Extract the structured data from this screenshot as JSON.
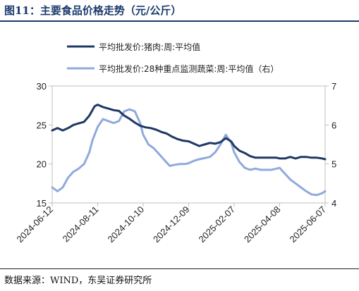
{
  "figure": {
    "title": "图11：主要食品价格走势（元/公斤）",
    "source": "数据来源：WIND，东吴证券研究所"
  },
  "chart_data": {
    "type": "line",
    "title": "主要食品价格走势（元/公斤）",
    "x_tick_labels": [
      "2024-06-12",
      "2024-08-11",
      "2024-10-10",
      "2024-12-09",
      "2025-02-07",
      "2025-04-08",
      "2025-06-07"
    ],
    "y_left": {
      "lim": [
        15,
        30
      ],
      "ticks": [
        "15",
        "20",
        "25",
        "30"
      ]
    },
    "y_right": {
      "lim": [
        4,
        7
      ],
      "ticks": [
        "4",
        "5",
        "6",
        "7"
      ]
    },
    "legend_position": "top-center",
    "grid": false,
    "series": [
      {
        "name": "平均批发价:猪肉:周:平均值",
        "axis": "left",
        "color": "#1f3864",
        "x": [
          "2024-06-12",
          "2024-06-19",
          "2024-06-26",
          "2024-07-03",
          "2024-07-10",
          "2024-07-17",
          "2024-07-24",
          "2024-07-31",
          "2024-08-07",
          "2024-08-11",
          "2024-08-18",
          "2024-08-25",
          "2024-09-01",
          "2024-09-08",
          "2024-09-15",
          "2024-09-22",
          "2024-09-29",
          "2024-10-06",
          "2024-10-13",
          "2024-10-20",
          "2024-10-27",
          "2024-11-03",
          "2024-11-10",
          "2024-11-17",
          "2024-11-24",
          "2024-12-01",
          "2024-12-09",
          "2024-12-16",
          "2024-12-23",
          "2024-12-30",
          "2025-01-06",
          "2025-01-13",
          "2025-01-20",
          "2025-01-27",
          "2025-02-03",
          "2025-02-07",
          "2025-02-14",
          "2025-02-21",
          "2025-02-28",
          "2025-03-07",
          "2025-03-14",
          "2025-03-21",
          "2025-03-28",
          "2025-04-04",
          "2025-04-08",
          "2025-04-15",
          "2025-04-22",
          "2025-04-29",
          "2025-05-06",
          "2025-05-13",
          "2025-05-20",
          "2025-05-27",
          "2025-06-03",
          "2025-06-07"
        ],
        "values": [
          24.3,
          24.6,
          24.3,
          24.6,
          25.0,
          25.2,
          25.4,
          26.2,
          27.4,
          27.6,
          27.3,
          27.1,
          26.9,
          26.8,
          26.2,
          25.8,
          25.3,
          24.9,
          24.7,
          24.6,
          24.4,
          24.1,
          23.9,
          23.5,
          23.2,
          23.0,
          22.9,
          22.6,
          22.3,
          22.5,
          22.7,
          22.6,
          22.8,
          23.3,
          22.9,
          22.3,
          21.7,
          21.4,
          21.0,
          20.8,
          20.8,
          20.8,
          20.8,
          20.8,
          20.7,
          20.7,
          20.9,
          20.7,
          20.9,
          20.9,
          20.8,
          20.8,
          20.7,
          20.6
        ]
      },
      {
        "name": "平均批发价:28种重点监测蔬菜:周:平均值（右）",
        "axis": "right",
        "color": "#8faadc",
        "x": [
          "2024-06-12",
          "2024-06-19",
          "2024-06-26",
          "2024-07-03",
          "2024-07-10",
          "2024-07-17",
          "2024-07-24",
          "2024-07-31",
          "2024-08-04",
          "2024-08-11",
          "2024-08-18",
          "2024-08-25",
          "2024-09-01",
          "2024-09-08",
          "2024-09-15",
          "2024-09-22",
          "2024-09-29",
          "2024-10-06",
          "2024-10-10",
          "2024-10-17",
          "2024-10-24",
          "2024-10-31",
          "2024-11-07",
          "2024-11-14",
          "2024-11-21",
          "2024-11-28",
          "2024-12-05",
          "2024-12-09",
          "2024-12-16",
          "2024-12-23",
          "2024-12-30",
          "2025-01-06",
          "2025-01-13",
          "2025-01-20",
          "2025-01-27",
          "2025-02-03",
          "2025-02-07",
          "2025-02-14",
          "2025-02-21",
          "2025-02-28",
          "2025-03-07",
          "2025-03-14",
          "2025-03-21",
          "2025-03-28",
          "2025-04-04",
          "2025-04-08",
          "2025-04-15",
          "2025-04-22",
          "2025-04-29",
          "2025-05-06",
          "2025-05-13",
          "2025-05-20",
          "2025-05-27",
          "2025-06-03",
          "2025-06-07"
        ],
        "values": [
          4.4,
          4.3,
          4.4,
          4.65,
          4.8,
          4.88,
          5.0,
          5.3,
          5.6,
          5.95,
          6.15,
          6.1,
          6.05,
          6.1,
          6.35,
          6.4,
          6.35,
          6.05,
          5.75,
          5.5,
          5.4,
          5.25,
          5.1,
          4.95,
          4.98,
          5.0,
          5.0,
          5.02,
          5.08,
          5.12,
          5.15,
          5.18,
          5.3,
          5.5,
          5.75,
          5.55,
          5.3,
          5.05,
          4.9,
          4.85,
          4.88,
          4.85,
          4.85,
          4.85,
          4.88,
          4.9,
          4.75,
          4.6,
          4.5,
          4.4,
          4.3,
          4.22,
          4.2,
          4.25,
          4.3
        ]
      }
    ]
  }
}
